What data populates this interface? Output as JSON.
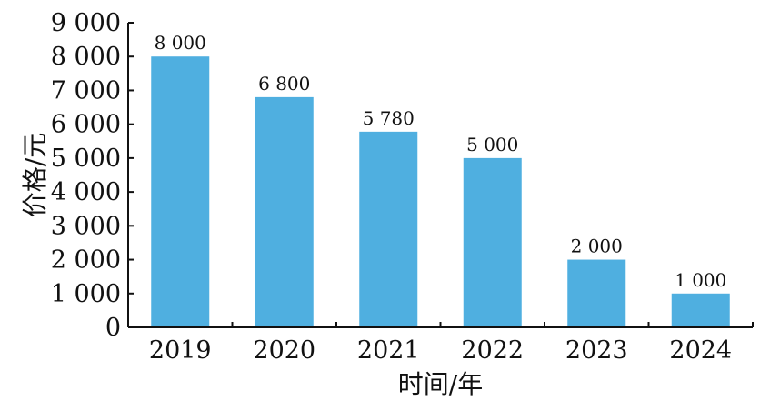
{
  "chart_data": {
    "type": "bar",
    "categories": [
      "2019",
      "2020",
      "2021",
      "2022",
      "2023",
      "2024"
    ],
    "values": [
      8000,
      6800,
      5780,
      5000,
      2000,
      1000
    ],
    "data_labels": [
      "8 000",
      "6 800",
      "5 780",
      "5 000",
      "2 000",
      "1 000"
    ],
    "xlabel": "时间/年",
    "ylabel": "价格/元",
    "ylim": [
      0,
      9000
    ],
    "yticks": [
      0,
      1000,
      2000,
      3000,
      4000,
      5000,
      6000,
      7000,
      8000,
      9000
    ],
    "ytick_labels": [
      "0",
      "1 000",
      "2 000",
      "3 000",
      "4 000",
      "5 000",
      "6 000",
      "7 000",
      "8 000",
      "9 000"
    ],
    "bar_color": "#4FAFE0",
    "grid": false
  }
}
